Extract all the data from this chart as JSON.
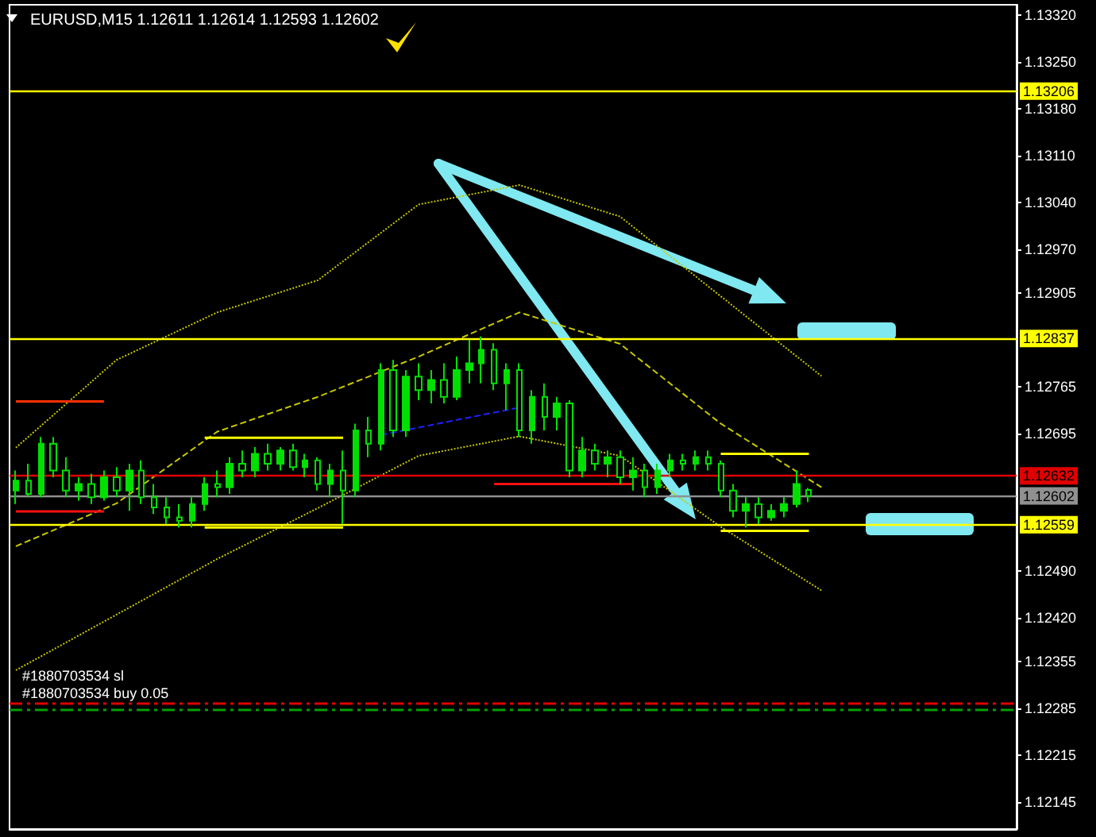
{
  "chart_data": {
    "type": "candlestick",
    "title": "EURUSD,M15 1.12611 1.12614 1.12593 1.12602",
    "color": "#00e000",
    "tick_labels": "y",
    "categories": [
      null,
      null,
      null,
      null,
      null,
      null,
      null,
      null,
      null,
      null,
      null,
      null,
      null,
      null,
      null,
      null,
      null,
      null,
      null,
      null,
      null,
      null,
      null,
      null,
      null,
      null,
      null,
      null,
      null,
      null,
      null,
      null,
      null,
      null,
      null,
      null,
      null,
      null,
      null,
      null,
      null,
      null,
      null,
      null,
      null,
      null,
      null,
      null,
      null,
      null,
      null,
      null,
      null,
      null,
      null,
      null,
      null,
      null,
      null,
      null,
      null,
      null,
      null,
      null,
      null,
      null,
      null,
      null,
      null,
      null,
      null,
      null,
      null,
      null,
      null,
      null,
      null,
      null,
      null,
      null
    ],
    "ohlc": [
      [
        1.1261,
        1.1264,
        1.1259,
        1.12625
      ],
      [
        1.12625,
        1.1265,
        1.126,
        1.12605
      ],
      [
        1.12605,
        1.1269,
        1.126,
        1.1268
      ],
      [
        1.1268,
        1.1269,
        1.1263,
        1.1264
      ],
      [
        1.1264,
        1.1266,
        1.126,
        1.1261
      ],
      [
        1.1261,
        1.1263,
        1.12595,
        1.1262
      ],
      [
        1.1262,
        1.12635,
        1.1259,
        1.126
      ],
      [
        1.126,
        1.1264,
        1.12595,
        1.1263
      ],
      [
        1.1263,
        1.12645,
        1.126,
        1.1261
      ],
      [
        1.1261,
        1.1265,
        1.1258,
        1.1264
      ],
      [
        1.1264,
        1.12655,
        1.1259,
        1.126
      ],
      [
        1.126,
        1.1262,
        1.12575,
        1.12585
      ],
      [
        1.12585,
        1.126,
        1.1256,
        1.1257
      ],
      [
        1.1257,
        1.1259,
        1.12555,
        1.12565
      ],
      [
        1.12565,
        1.126,
        1.12555,
        1.1259
      ],
      [
        1.1259,
        1.1263,
        1.1258,
        1.1262
      ],
      [
        1.1262,
        1.1264,
        1.126,
        1.12615
      ],
      [
        1.12615,
        1.1266,
        1.12605,
        1.1265
      ],
      [
        1.1265,
        1.1267,
        1.1263,
        1.1264
      ],
      [
        1.1264,
        1.12675,
        1.1263,
        1.12665
      ],
      [
        1.12665,
        1.1268,
        1.1264,
        1.1265
      ],
      [
        1.1265,
        1.12675,
        1.1264,
        1.1267
      ],
      [
        1.1267,
        1.1268,
        1.1264,
        1.12645
      ],
      [
        1.12645,
        1.12665,
        1.1263,
        1.12655
      ],
      [
        1.12655,
        1.1266,
        1.1261,
        1.1262
      ],
      [
        1.1262,
        1.1265,
        1.126,
        1.1264
      ],
      [
        1.1264,
        1.1267,
        1.1256,
        1.1261
      ],
      [
        1.1261,
        1.1271,
        1.126,
        1.127
      ],
      [
        1.127,
        1.1272,
        1.1266,
        1.1268
      ],
      [
        1.1268,
        1.128,
        1.1267,
        1.1279
      ],
      [
        1.1279,
        1.12805,
        1.1269,
        1.127
      ],
      [
        1.127,
        1.1279,
        1.1269,
        1.1278
      ],
      [
        1.1278,
        1.128,
        1.12745,
        1.1276
      ],
      [
        1.1276,
        1.1279,
        1.1274,
        1.12775
      ],
      [
        1.12775,
        1.128,
        1.1274,
        1.1275
      ],
      [
        1.1275,
        1.1281,
        1.12745,
        1.1279
      ],
      [
        1.1279,
        1.12835,
        1.1277,
        1.128
      ],
      [
        1.128,
        1.1284,
        1.1277,
        1.1282
      ],
      [
        1.1282,
        1.1283,
        1.1276,
        1.1277
      ],
      [
        1.1277,
        1.128,
        1.1273,
        1.1279
      ],
      [
        1.1279,
        1.128,
        1.1269,
        1.127
      ],
      [
        1.127,
        1.1276,
        1.1268,
        1.1275
      ],
      [
        1.1275,
        1.1277,
        1.127,
        1.1272
      ],
      [
        1.1272,
        1.1275,
        1.127,
        1.1274
      ],
      [
        1.1274,
        1.12745,
        1.1263,
        1.1264
      ],
      [
        1.1264,
        1.1269,
        1.1263,
        1.1267
      ],
      [
        1.1267,
        1.1268,
        1.1264,
        1.1265
      ],
      [
        1.1265,
        1.1267,
        1.1263,
        1.1266
      ],
      [
        1.1266,
        1.1267,
        1.1262,
        1.1263
      ],
      [
        1.1263,
        1.1266,
        1.1261,
        1.1264
      ],
      [
        1.1264,
        1.1265,
        1.126,
        1.12615
      ],
      [
        1.12615,
        1.1265,
        1.12605,
        1.1264
      ],
      [
        1.1264,
        1.12665,
        1.1263,
        1.12655
      ],
      [
        1.12655,
        1.12665,
        1.1264,
        1.1265
      ],
      [
        1.1265,
        1.1267,
        1.1264,
        1.1266
      ],
      [
        1.1266,
        1.1267,
        1.1264,
        1.1265
      ],
      [
        1.1265,
        1.12655,
        1.126,
        1.1261
      ],
      [
        1.1261,
        1.1262,
        1.1257,
        1.1258
      ],
      [
        1.1258,
        1.126,
        1.12555,
        1.1259
      ],
      [
        1.1259,
        1.126,
        1.1256,
        1.1257
      ],
      [
        1.1257,
        1.1259,
        1.12565,
        1.1258
      ],
      [
        1.1258,
        1.126,
        1.1257,
        1.1259
      ],
      [
        1.1259,
        1.1264,
        1.12585,
        1.1262
      ],
      [
        1.12611,
        1.12614,
        1.12593,
        1.12602
      ],
      null,
      null,
      null,
      null,
      null,
      null,
      null,
      null,
      null,
      null,
      null,
      null,
      null,
      null,
      null,
      null
    ],
    "series": [
      {
        "type": "line",
        "color": "#c8c800",
        "line_style": "dotted",
        "values": [
          1.12674,
          null,
          null,
          null,
          null,
          null,
          null,
          null,
          1.12805,
          null,
          null,
          null,
          null,
          null,
          null,
          null,
          1.12876,
          null,
          null,
          null,
          null,
          null,
          null,
          null,
          1.12924,
          null,
          null,
          null,
          null,
          null,
          null,
          null,
          1.13037,
          null,
          null,
          null,
          null,
          null,
          null,
          null,
          1.13066,
          null,
          null,
          null,
          null,
          null,
          null,
          null,
          1.13019,
          null,
          null,
          null,
          null,
          null,
          null,
          null,
          1.129,
          null,
          null,
          null,
          null,
          null,
          null,
          null,
          1.12781,
          null,
          null,
          null,
          null,
          null,
          null,
          null,
          null,
          null,
          null,
          null,
          null,
          null,
          null,
          null
        ]
      },
      {
        "type": "line",
        "color": "#c8c800",
        "line_style": "dashed",
        "values": [
          1.12527,
          null,
          null,
          null,
          null,
          null,
          null,
          null,
          1.12591,
          null,
          null,
          null,
          null,
          null,
          null,
          null,
          1.12698,
          null,
          null,
          null,
          null,
          null,
          null,
          null,
          1.1275,
          null,
          null,
          null,
          null,
          null,
          null,
          null,
          1.1281,
          null,
          null,
          null,
          null,
          null,
          null,
          null,
          1.12876,
          null,
          null,
          null,
          null,
          null,
          null,
          null,
          1.12829,
          null,
          null,
          null,
          null,
          null,
          null,
          null,
          1.1271,
          null,
          null,
          null,
          null,
          null,
          null,
          null,
          1.12615,
          null,
          null,
          null,
          null,
          null,
          null,
          null,
          null,
          null,
          null,
          null,
          null,
          null,
          null,
          null
        ]
      },
      {
        "type": "line",
        "color": "#c8c800",
        "line_style": "dotted",
        "values": [
          1.12342,
          null,
          null,
          null,
          null,
          null,
          null,
          null,
          1.12425,
          null,
          null,
          null,
          null,
          null,
          null,
          null,
          1.12508,
          null,
          null,
          null,
          null,
          null,
          null,
          null,
          1.12584,
          null,
          null,
          null,
          null,
          null,
          null,
          null,
          1.12662,
          null,
          null,
          null,
          null,
          null,
          null,
          null,
          1.12691,
          null,
          null,
          null,
          null,
          null,
          null,
          null,
          1.12662,
          null,
          null,
          null,
          null,
          null,
          null,
          null,
          1.12556,
          null,
          null,
          null,
          null,
          null,
          null,
          null,
          1.12461,
          null,
          null,
          null,
          null,
          null,
          null,
          null,
          null,
          null,
          null,
          null,
          null,
          null,
          null,
          null
        ]
      },
      {
        "type": "line",
        "color": "#2020ff",
        "line_style": "dashed",
        "values": [
          null,
          null,
          null,
          null,
          null,
          null,
          null,
          null,
          null,
          null,
          null,
          null,
          null,
          null,
          null,
          null,
          null,
          null,
          null,
          null,
          null,
          null,
          null,
          null,
          null,
          null,
          null,
          null,
          null,
          1.12693,
          null,
          null,
          null,
          null,
          null,
          null,
          null,
          null,
          null,
          null,
          1.12734,
          null,
          null,
          null,
          null,
          null,
          null,
          null,
          null,
          null,
          null,
          null,
          null,
          null,
          null,
          null,
          null,
          null,
          null,
          null,
          null,
          null,
          null,
          null,
          null,
          null,
          null,
          null,
          null,
          null,
          null,
          null,
          null,
          null,
          null,
          null,
          null,
          null,
          null,
          null
        ]
      },
      {
        "type": "line",
        "color": "#ff3000",
        "line_style": "solid",
        "values": [
          1.12743,
          null,
          null,
          null,
          null,
          null,
          null,
          1.12743,
          null,
          null,
          null,
          null,
          null,
          null,
          null,
          null,
          null,
          null,
          null,
          null,
          null,
          null,
          null,
          null,
          null,
          null,
          null,
          null,
          null,
          null,
          null,
          null,
          null,
          null,
          null,
          null,
          null,
          null,
          null,
          null,
          null,
          null,
          null,
          null,
          null,
          null,
          null,
          null,
          null,
          null,
          null,
          null,
          null,
          null,
          null,
          null,
          null,
          null,
          null,
          null,
          null,
          null,
          null,
          null,
          null,
          null,
          null,
          null,
          null,
          null,
          null,
          null,
          null,
          null,
          null,
          null,
          null,
          null,
          null,
          null
        ]
      },
      {
        "type": "line",
        "color": "#ff1010",
        "line_style": "solid",
        "values": [
          1.12579,
          null,
          null,
          null,
          null,
          null,
          null,
          1.12579,
          null,
          null,
          null,
          null,
          null,
          null,
          null,
          null,
          null,
          null,
          null,
          null,
          null,
          null,
          null,
          null,
          null,
          null,
          null,
          null,
          null,
          null,
          null,
          null,
          null,
          null,
          null,
          null,
          null,
          null,
          null,
          null,
          null,
          null,
          null,
          null,
          null,
          null,
          null,
          null,
          null,
          null,
          null,
          null,
          null,
          null,
          null,
          null,
          null,
          null,
          null,
          null,
          null,
          null,
          null,
          null,
          null,
          null,
          null,
          null,
          null,
          null,
          null,
          null,
          null,
          null,
          null,
          null,
          null,
          null,
          null,
          null
        ]
      },
      {
        "type": "line",
        "color": "#ffff00",
        "line_style": "solid",
        "values": [
          null,
          null,
          null,
          null,
          null,
          null,
          null,
          null,
          null,
          null,
          null,
          null,
          null,
          null,
          null,
          1.12689,
          null,
          null,
          null,
          null,
          null,
          null,
          null,
          null,
          null,
          null,
          1.12689,
          null,
          null,
          null,
          null,
          null,
          null,
          null,
          null,
          null,
          null,
          null,
          null,
          null,
          null,
          null,
          null,
          null,
          null,
          null,
          null,
          null,
          null,
          null,
          null,
          null,
          null,
          null,
          null,
          null,
          null,
          null,
          null,
          null,
          null,
          null,
          null,
          null,
          null,
          null,
          null,
          null,
          null,
          null,
          null,
          null,
          null,
          null,
          null,
          null,
          null,
          null,
          null,
          null
        ]
      },
      {
        "type": "line",
        "color": "#ffff00",
        "line_style": "solid",
        "values": [
          null,
          null,
          null,
          null,
          null,
          null,
          null,
          null,
          null,
          null,
          null,
          null,
          null,
          null,
          null,
          1.12555,
          null,
          null,
          null,
          null,
          null,
          null,
          null,
          null,
          null,
          null,
          1.12555,
          null,
          null,
          null,
          null,
          null,
          null,
          null,
          null,
          null,
          null,
          null,
          null,
          null,
          null,
          null,
          null,
          null,
          null,
          null,
          null,
          null,
          null,
          null,
          null,
          null,
          null,
          null,
          null,
          null,
          null,
          null,
          null,
          null,
          null,
          null,
          null,
          null,
          null,
          null,
          null,
          null,
          null,
          null,
          null,
          null,
          null,
          null,
          null,
          null,
          null,
          null,
          null,
          null
        ]
      },
      {
        "type": "line",
        "color": "#ff1010",
        "line_style": "solid",
        "values": [
          null,
          null,
          null,
          null,
          null,
          null,
          null,
          null,
          null,
          null,
          null,
          null,
          null,
          null,
          null,
          null,
          null,
          null,
          null,
          null,
          null,
          null,
          null,
          null,
          null,
          null,
          null,
          null,
          null,
          null,
          null,
          null,
          null,
          null,
          null,
          null,
          null,
          null,
          1.1262,
          null,
          null,
          null,
          null,
          null,
          null,
          null,
          null,
          null,
          null,
          1.1262,
          null,
          null,
          null,
          null,
          null,
          null,
          null,
          null,
          null,
          null,
          null,
          null,
          null,
          null,
          null,
          null,
          null,
          null,
          null,
          null,
          null,
          null,
          null,
          null,
          null,
          null,
          null,
          null,
          null,
          null
        ]
      },
      {
        "type": "line",
        "color": "#ffff00",
        "line_style": "solid",
        "values": [
          null,
          null,
          null,
          null,
          null,
          null,
          null,
          null,
          null,
          null,
          null,
          null,
          null,
          null,
          null,
          null,
          null,
          null,
          null,
          null,
          null,
          null,
          null,
          null,
          null,
          null,
          null,
          null,
          null,
          null,
          null,
          null,
          null,
          null,
          null,
          null,
          null,
          null,
          null,
          null,
          null,
          null,
          null,
          null,
          null,
          null,
          null,
          null,
          null,
          null,
          null,
          null,
          null,
          null,
          null,
          null,
          1.12665,
          null,
          null,
          null,
          null,
          null,
          null,
          1.12665,
          null,
          null,
          null,
          null,
          null,
          null,
          null,
          null,
          null,
          null,
          null,
          null,
          null,
          null,
          null,
          null
        ]
      },
      {
        "type": "line",
        "color": "#ffff00",
        "line_style": "solid",
        "values": [
          null,
          null,
          null,
          null,
          null,
          null,
          null,
          null,
          null,
          null,
          null,
          null,
          null,
          null,
          null,
          null,
          null,
          null,
          null,
          null,
          null,
          null,
          null,
          null,
          null,
          null,
          null,
          null,
          null,
          null,
          null,
          null,
          null,
          null,
          null,
          null,
          null,
          null,
          null,
          null,
          null,
          null,
          null,
          null,
          null,
          null,
          null,
          null,
          null,
          null,
          null,
          null,
          null,
          null,
          null,
          null,
          1.1255,
          null,
          null,
          null,
          null,
          null,
          null,
          1.1255,
          null,
          null,
          null,
          null,
          null,
          null,
          null,
          null,
          null,
          null,
          null,
          null,
          null,
          null,
          null,
          null
        ]
      }
    ],
    "ylim": [
      1.12105,
      1.13335
    ],
    "yticks": [
      {
        "value": 1.1332,
        "label": "1.13320"
      },
      {
        "value": 1.1325,
        "label": "1.13250"
      },
      {
        "value": 1.1318,
        "label": "1.13180"
      },
      {
        "value": 1.1311,
        "label": "1.13110"
      },
      {
        "value": 1.1304,
        "label": "1.13040"
      },
      {
        "value": 1.1297,
        "label": "1.12970"
      },
      {
        "value": 1.12905,
        "label": "1.12905"
      },
      {
        "value": 1.12765,
        "label": "1.12765"
      },
      {
        "value": 1.12695,
        "label": "1.12695"
      },
      {
        "value": 1.1249,
        "label": "1.12490"
      },
      {
        "value": 1.1242,
        "label": "1.12420"
      },
      {
        "value": 1.12355,
        "label": "1.12355"
      },
      {
        "value": 1.12285,
        "label": "1.12285"
      },
      {
        "value": 1.12215,
        "label": "1.12215"
      },
      {
        "value": 1.12145,
        "label": "1.12145"
      }
    ],
    "ref_lines": [
      {
        "axis": "y",
        "value": 1.13206,
        "label": "1.13206",
        "color": "#ffff00",
        "line_style": "solid"
      },
      {
        "axis": "y",
        "value": 1.12837,
        "label": "1.12837",
        "color": "#ffff00",
        "line_style": "solid"
      },
      {
        "axis": "y",
        "value": 1.12632,
        "label": "1.12632",
        "color": "#e00000",
        "line_style": "solid"
      },
      {
        "axis": "y",
        "value": 1.12602,
        "label": "1.12602",
        "color": "#909090",
        "line_style": "solid"
      },
      {
        "axis": "y",
        "value": 1.12559,
        "label": "1.12559",
        "color": "#ffff00",
        "line_style": "solid"
      },
      {
        "axis": "y",
        "value": 1.12292,
        "color": "#e00000",
        "line_style": "dashed"
      },
      {
        "axis": "y",
        "value": 1.12283,
        "color": "#00a000",
        "line_style": "dashed"
      }
    ],
    "annotations": [
      "#1880703534 sl",
      "#1880703534 buy 0.05"
    ]
  }
}
